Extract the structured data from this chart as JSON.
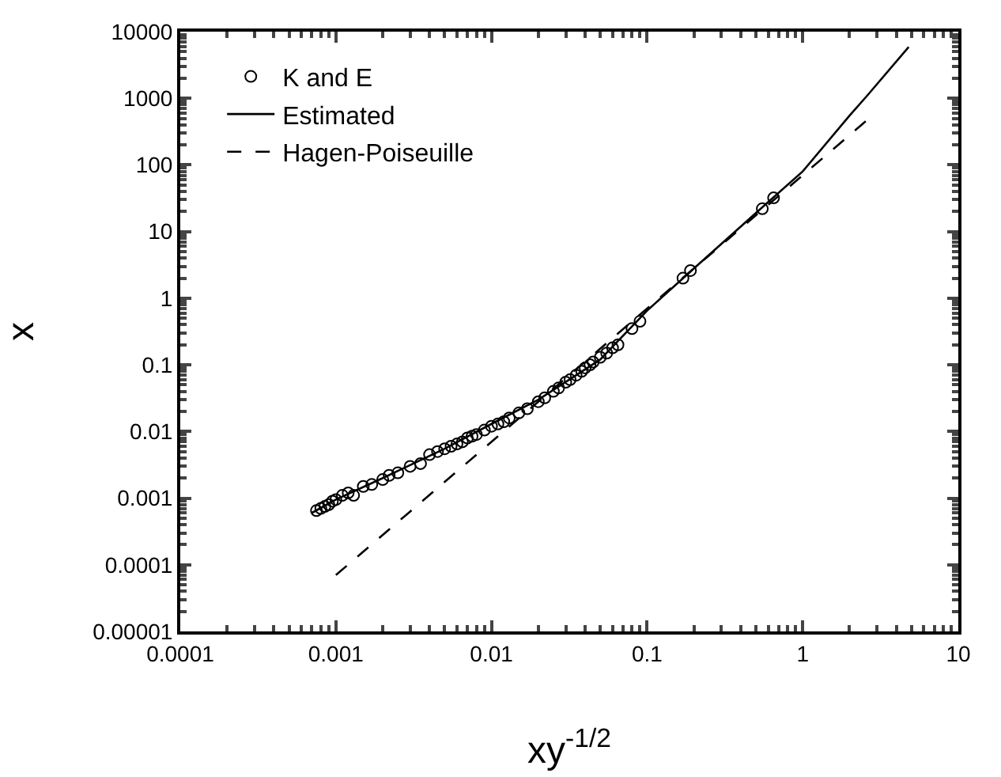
{
  "chart_data": {
    "type": "scatter",
    "xlabel": "xy$^{-1/2}$",
    "ylabel": "x",
    "log": "xy",
    "grid": false,
    "legend": "top left",
    "xlim": [
      0.0001,
      10
    ],
    "xticks": [
      0.0001,
      0.001,
      0.01,
      0.1,
      1,
      10
    ],
    "ylim": [
      1e-05,
      10000
    ],
    "yticks": [
      {
        "value": 1e-05,
        "label": "0.00001"
      },
      0.0001,
      0.001,
      0.01,
      0.1,
      1,
      10,
      100,
      1000,
      10000
    ],
    "series": [
      {
        "name": "K and E",
        "type": "scatter",
        "marker": "circle",
        "color": "#000000",
        "x": [
          0.00075,
          0.0008,
          0.00085,
          0.0009,
          0.00095,
          0.001,
          0.0011,
          0.0012,
          0.0013,
          0.0015,
          0.0017,
          0.002,
          0.0022,
          0.0025,
          0.003,
          0.0035,
          0.004,
          0.0045,
          0.005,
          0.0055,
          0.006,
          0.0065,
          0.007,
          0.0075,
          0.008,
          0.009,
          0.01,
          0.011,
          0.012,
          0.013,
          0.015,
          0.017,
          0.02,
          0.022,
          0.025,
          0.027,
          0.03,
          0.032,
          0.035,
          0.038,
          0.04,
          0.043,
          0.045,
          0.05,
          0.055,
          0.06,
          0.065,
          0.08,
          0.09,
          0.17,
          0.19,
          0.55,
          0.65
        ],
        "values": [
          0.00065,
          0.0007,
          0.00075,
          0.0008,
          0.0009,
          0.00095,
          0.0011,
          0.0012,
          0.0011,
          0.0015,
          0.0016,
          0.0019,
          0.0022,
          0.0024,
          0.003,
          0.0033,
          0.0045,
          0.005,
          0.0055,
          0.006,
          0.0065,
          0.007,
          0.008,
          0.0085,
          0.009,
          0.0105,
          0.012,
          0.013,
          0.014,
          0.016,
          0.019,
          0.022,
          0.028,
          0.032,
          0.04,
          0.045,
          0.055,
          0.06,
          0.07,
          0.08,
          0.09,
          0.1,
          0.11,
          0.13,
          0.15,
          0.18,
          0.2,
          0.35,
          0.45,
          2,
          2.6,
          22,
          32
        ]
      },
      {
        "name": "Estimated",
        "type": "line",
        "marker": "none",
        "line_style": "solid",
        "color": "#000000",
        "x": [
          0.0007,
          0.001,
          0.002,
          0.005,
          0.01,
          0.02,
          0.05,
          0.1,
          0.2,
          0.5,
          1,
          2,
          2.6,
          4.8
        ],
        "values": [
          0.0006,
          0.00095,
          0.002,
          0.0055,
          0.013,
          0.03,
          0.12,
          0.65,
          2.8,
          19,
          80,
          550,
          1100,
          5900
        ]
      },
      {
        "name": "Hagen-Poiseuille",
        "type": "line",
        "marker": "none",
        "line_style": "dashed",
        "color": "#000000",
        "x": [
          0.001,
          2.6
        ],
        "values": [
          7e-05,
          473
        ]
      }
    ]
  }
}
